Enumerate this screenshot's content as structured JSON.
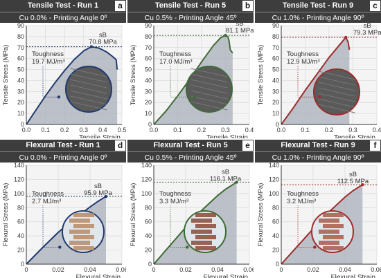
{
  "chart_data": [
    {
      "type": "line",
      "panel_letter": "a",
      "title": "Tensile Test - Run 1",
      "subtitle": "Cu 0.0% - Printing Angle 0º",
      "xlabel": "Tensile Strain",
      "ylabel": "Tensile Stress (MPa)",
      "xlim": [
        0,
        0.5
      ],
      "ylim": [
        0,
        90
      ],
      "xticks": [
        "0.0",
        "0.1",
        "0.2",
        "0.3",
        "0.4",
        "0.5"
      ],
      "yticks": [
        "0",
        "10",
        "20",
        "30",
        "40",
        "50",
        "60",
        "70",
        "80",
        "90"
      ],
      "x": [
        0,
        0.05,
        0.1,
        0.15,
        0.2,
        0.25,
        0.3,
        0.34,
        0.38,
        0.42,
        0.45,
        0.47,
        0.475
      ],
      "y": [
        0,
        13,
        26,
        38,
        49,
        59,
        67,
        70.8,
        69.5,
        66,
        62,
        59,
        50
      ],
      "ref_line": 70.8,
      "peak_label": "sB",
      "peak_value": "70.8 MPa",
      "toughness_label": "Toughness",
      "toughness_value": "19.7 MJ/m³",
      "color": "#1f3a6e"
    },
    {
      "type": "line",
      "panel_letter": "b",
      "title": "Tensile Test - Run 5",
      "subtitle": "Cu 0.5% - Printing Angle 45º",
      "xlabel": "Tensile Strain",
      "ylabel": "Tensile Stress (MPa)",
      "xlim": [
        0,
        0.4
      ],
      "ylim": [
        0,
        90
      ],
      "xticks": [
        "0.0",
        "0.1",
        "0.2",
        "0.3",
        "0.4"
      ],
      "yticks": [
        "0",
        "10",
        "20",
        "30",
        "40",
        "50",
        "60",
        "70",
        "80",
        "90"
      ],
      "x": [
        0,
        0.05,
        0.1,
        0.15,
        0.2,
        0.25,
        0.28,
        0.3,
        0.31,
        0.315,
        0.32,
        0.33
      ],
      "y": [
        0,
        12,
        26,
        41,
        57,
        72,
        79,
        81.1,
        80,
        76,
        68,
        65
      ],
      "ref_line": 81.1,
      "peak_label": "sB",
      "peak_value": "81.1 MPa",
      "toughness_label": "Toughness",
      "toughness_value": "17.0 MJ/m³",
      "color": "#3d6b34"
    },
    {
      "type": "line",
      "panel_letter": "c",
      "title": "Tensile Test - Run 9",
      "subtitle": "Cu 1.0% - Printing Angle 90º",
      "xlabel": "Tensile Strain",
      "ylabel": "Tensile Stress (MPa)",
      "xlim": [
        0,
        0.4
      ],
      "ylim": [
        0,
        90
      ],
      "xticks": [
        "0.0",
        "0.1",
        "0.2",
        "0.3",
        "0.4"
      ],
      "yticks": [
        "0",
        "10",
        "20",
        "30",
        "40",
        "50",
        "60",
        "70",
        "80",
        "90"
      ],
      "x": [
        0,
        0.05,
        0.1,
        0.15,
        0.2,
        0.25,
        0.27,
        0.28,
        0.285
      ],
      "y": [
        0,
        15,
        31,
        46,
        61,
        74,
        79.3,
        75,
        68
      ],
      "ref_line": 79.3,
      "peak_label": "sB",
      "peak_value": "79.3 MPa",
      "toughness_label": "Toughness",
      "toughness_value": "12.9 MJ/m³",
      "color": "#9e2b2b"
    },
    {
      "type": "line",
      "panel_letter": "d",
      "title": "Flexural Test - Run 1",
      "subtitle": "Cu 0.0% - Printing Angle 0º",
      "xlabel": "Flexural Strain",
      "ylabel": "Flexural Stress (MPa)",
      "xlim": [
        0,
        0.06
      ],
      "ylim": [
        0,
        140
      ],
      "xticks": [
        "0",
        "0.02",
        "0.04",
        "0.06"
      ],
      "yticks": [
        "0",
        "20",
        "40",
        "60",
        "80",
        "100",
        "120",
        "140"
      ],
      "x": [
        0,
        0.01,
        0.02,
        0.03,
        0.04,
        0.045,
        0.05
      ],
      "y": [
        0,
        23,
        45,
        64,
        81,
        89,
        95.9
      ],
      "ref_line": 95.9,
      "peak_label": "sB",
      "peak_value": "95.9 MPa",
      "toughness_label": "Toughness",
      "toughness_value": "2.7 MJ/m³",
      "color": "#1f3a6e"
    },
    {
      "type": "line",
      "panel_letter": "e",
      "title": "Flexural Test - Run 5",
      "subtitle": "Cu 0.5% - Printing Angle 45º",
      "xlabel": "Flexural Strain",
      "ylabel": "Flexural Stress (MPa)",
      "xlim": [
        0,
        0.06
      ],
      "ylim": [
        0,
        140
      ],
      "xticks": [
        "0",
        "0.02",
        "0.04",
        "0.06"
      ],
      "yticks": [
        "0",
        "20",
        "40",
        "60",
        "80",
        "100",
        "120",
        "140"
      ],
      "x": [
        0,
        0.01,
        0.02,
        0.03,
        0.04,
        0.045,
        0.052
      ],
      "y": [
        0,
        26,
        52,
        76,
        97,
        106,
        116.1
      ],
      "ref_line": 116.1,
      "peak_label": "sB",
      "peak_value": "116.1 MPa",
      "toughness_label": "Toughness",
      "toughness_value": "3.3 MJ/m³",
      "color": "#3d6b34"
    },
    {
      "type": "line",
      "panel_letter": "f",
      "title": "Flexural Test - Run 9",
      "subtitle": "Cu 1.0% - Printing Angle 90º",
      "xlabel": "Flexural Strain",
      "ylabel": "Flexural Stress (MPa)",
      "xlim": [
        0,
        0.06
      ],
      "ylim": [
        0,
        140
      ],
      "xticks": [
        "0",
        "0.02",
        "0.04",
        "0.06"
      ],
      "yticks": [
        "0",
        "20",
        "40",
        "60",
        "80",
        "100",
        "120",
        "140"
      ],
      "x": [
        0,
        0.01,
        0.02,
        0.03,
        0.04,
        0.045,
        0.051
      ],
      "y": [
        0,
        25,
        50,
        74,
        95,
        104,
        112.5
      ],
      "ref_line": 112.5,
      "peak_label": "sB",
      "peak_value": "112.5 MPa",
      "toughness_label": "Toughness",
      "toughness_value": "3.2 MJ/m³",
      "color": "#9e2b2b"
    }
  ]
}
